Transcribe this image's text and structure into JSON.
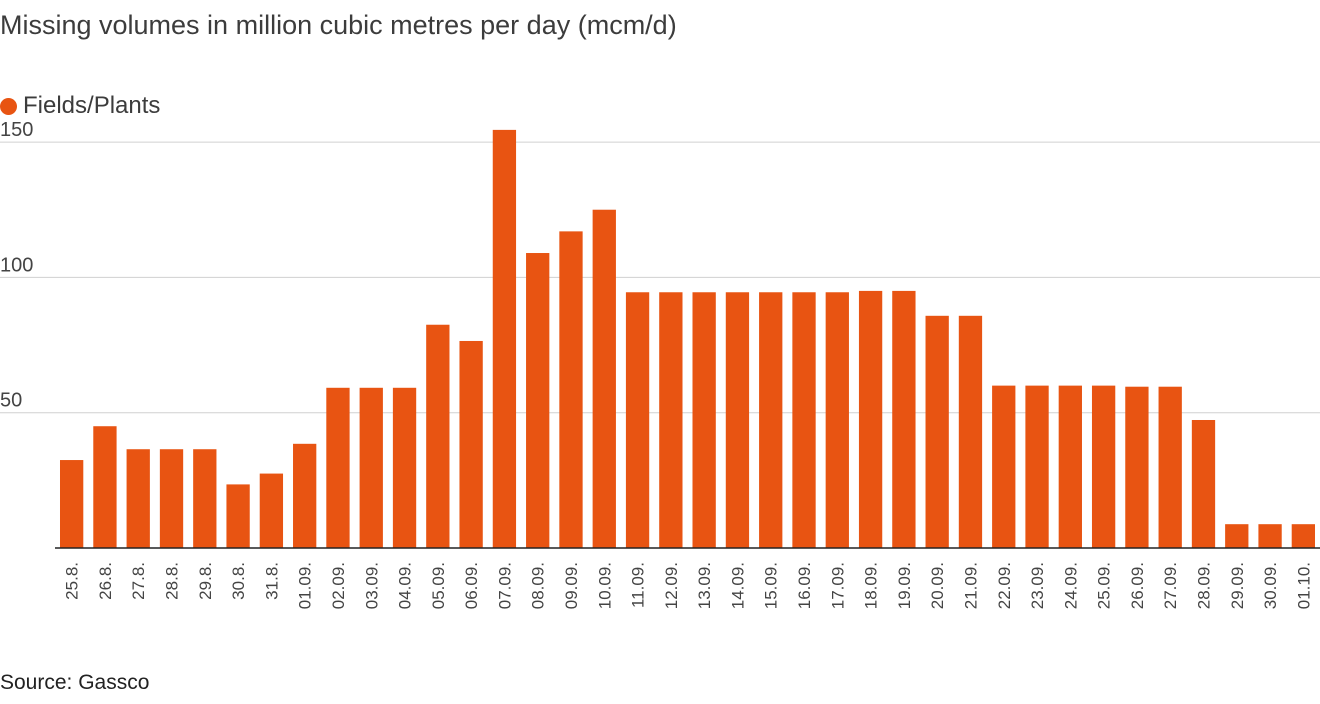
{
  "title": "Missing volumes in million cubic metres per day (mcm/d)",
  "legend": {
    "label": "Fields/Plants"
  },
  "source": "Source: Gassco",
  "colors": {
    "bar": "#e85412",
    "grid": "#d0d0d0",
    "axis": "#222222",
    "text": "#444444"
  },
  "chart_data": {
    "type": "bar",
    "categories": [
      "25.8.",
      "26.8.",
      "27.8.",
      "28.8.",
      "29.8.",
      "30.8.",
      "31.8.",
      "01.09.",
      "02.09.",
      "03.09.",
      "04.09.",
      "05.09.",
      "06.09.",
      "07.09.",
      "08.09.",
      "09.09.",
      "10.09.",
      "11.09.",
      "12.09.",
      "13.09.",
      "14.09.",
      "15.09.",
      "16.09.",
      "17.09.",
      "18.09.",
      "19.09.",
      "20.09.",
      "21.09.",
      "22.09.",
      "23.09.",
      "24.09.",
      "25.09.",
      "26.09.",
      "27.09.",
      "28.09.",
      "29.09.",
      "30.09.",
      "01.10."
    ],
    "series": [
      {
        "name": "Fields/Plants",
        "values": [
          32.5,
          45,
          36.5,
          36.5,
          36.5,
          23.5,
          27.5,
          38.5,
          59.2,
          59.2,
          59.2,
          82.5,
          76.5,
          154.5,
          109,
          117,
          125,
          94.5,
          94.5,
          94.5,
          94.5,
          94.5,
          94.5,
          94.5,
          95,
          95,
          85.8,
          85.8,
          60,
          60,
          60,
          60,
          59.6,
          59.6,
          47.3,
          8.8,
          8.8,
          8.8
        ]
      }
    ],
    "yticks": [
      50,
      100,
      150
    ],
    "ylim": [
      0,
      160
    ],
    "grid": true,
    "legend_position": "top-left"
  }
}
